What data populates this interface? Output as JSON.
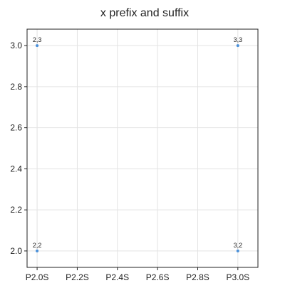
{
  "chart_data": {
    "type": "scatter",
    "title": "x prefix and suffix",
    "xlabel": "",
    "ylabel": "",
    "x_prefix": "P",
    "x_suffix": "S",
    "xlim": [
      1.95,
      3.1
    ],
    "ylim": [
      1.92,
      3.08
    ],
    "xticks": [
      2.0,
      2.2,
      2.4,
      2.6,
      2.8,
      3.0
    ],
    "xtick_labels": [
      "P2.0S",
      "P2.2S",
      "P2.4S",
      "P2.6S",
      "P2.8S",
      "P3.0S"
    ],
    "yticks": [
      2.0,
      2.2,
      2.4,
      2.6,
      2.8,
      3.0
    ],
    "ytick_labels": [
      "2.0",
      "2.2",
      "2.4",
      "2.6",
      "2.8",
      "3.0"
    ],
    "grid": true,
    "series": [
      {
        "color": "#4a90d9",
        "points": [
          {
            "x": 2,
            "y": 3,
            "label": "2,3"
          },
          {
            "x": 3,
            "y": 3,
            "label": "3,3"
          },
          {
            "x": 2,
            "y": 2,
            "label": "2,2"
          },
          {
            "x": 3,
            "y": 2,
            "label": "3,2"
          }
        ]
      }
    ]
  }
}
